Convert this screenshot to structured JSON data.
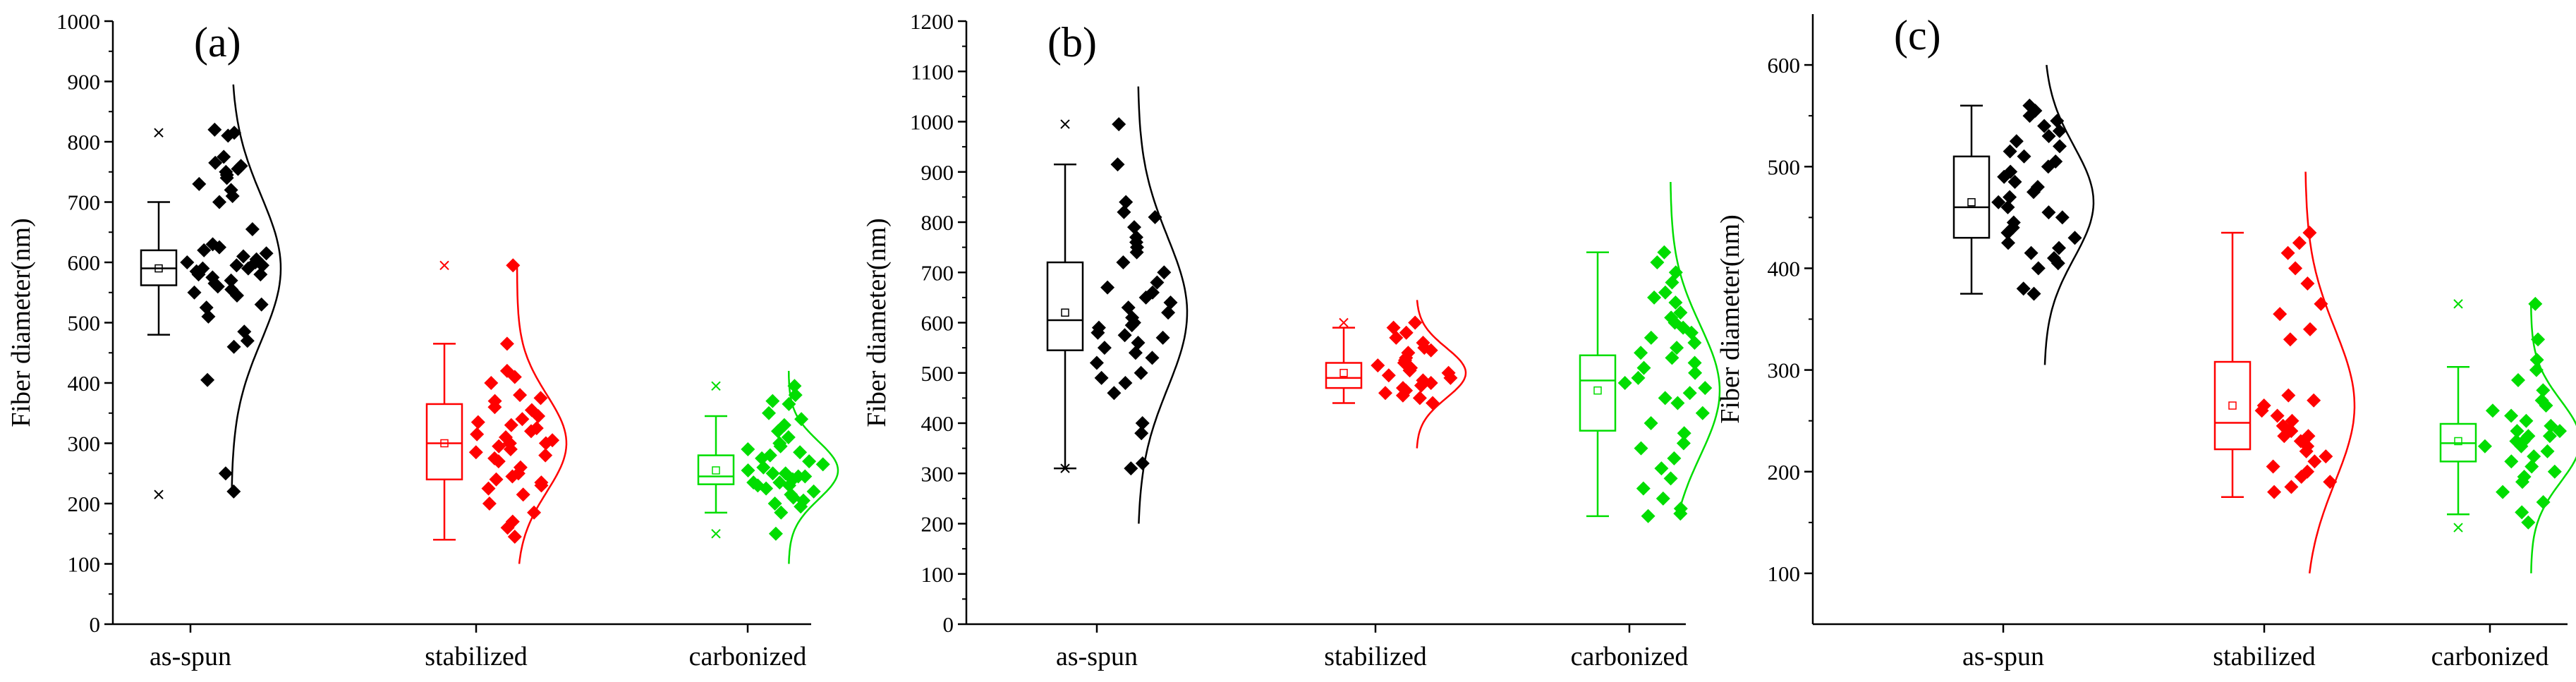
{
  "chart_data": [
    {
      "type": "box-scatter-distribution",
      "panel_label": "(a)",
      "ylabel": "Fiber diameter(nm)",
      "ylim": [
        0,
        1000
      ],
      "yticks": [
        0,
        100,
        200,
        300,
        400,
        500,
        600,
        700,
        800,
        900,
        1000
      ],
      "categories": [
        "as-spun",
        "stabilized",
        "carbonized"
      ],
      "series": [
        {
          "name": "as-spun",
          "color": "#000000",
          "box": {
            "min": 480,
            "q1": 562,
            "median": 590,
            "q3": 620,
            "max": 700,
            "mean": 590,
            "outliers": [
              815,
              215
            ]
          },
          "points": [
            820,
            815,
            810,
            775,
            765,
            760,
            755,
            750,
            745,
            740,
            730,
            720,
            710,
            700,
            655,
            630,
            625,
            620,
            615,
            610,
            605,
            600,
            600,
            595,
            595,
            590,
            590,
            585,
            580,
            580,
            575,
            570,
            565,
            560,
            555,
            550,
            545,
            530,
            525,
            510,
            485,
            470,
            460,
            405,
            250,
            220
          ],
          "curve": {
            "mean": 590,
            "sd": 120,
            "lo": 215,
            "hi": 895
          }
        },
        {
          "name": "stabilized",
          "color": "#ff0000",
          "box": {
            "min": 140,
            "q1": 240,
            "median": 300,
            "q3": 365,
            "max": 465,
            "mean": 300,
            "outliers": [
              595
            ]
          },
          "points": [
            595,
            465,
            420,
            410,
            400,
            380,
            375,
            370,
            360,
            355,
            345,
            340,
            335,
            330,
            325,
            320,
            315,
            310,
            305,
            300,
            300,
            295,
            290,
            285,
            280,
            275,
            270,
            260,
            250,
            245,
            240,
            235,
            230,
            225,
            215,
            200,
            185,
            170,
            160,
            145
          ],
          "curve": {
            "mean": 300,
            "sd": 80,
            "lo": 100,
            "hi": 595
          }
        },
        {
          "name": "carbonized",
          "color": "#00dd00",
          "box": {
            "min": 185,
            "q1": 232,
            "median": 245,
            "q3": 280,
            "max": 345,
            "mean": 255,
            "outliers": [
              395,
              150
            ]
          },
          "points": [
            395,
            380,
            370,
            365,
            350,
            340,
            330,
            320,
            310,
            300,
            295,
            290,
            285,
            280,
            275,
            270,
            265,
            260,
            255,
            250,
            250,
            245,
            245,
            240,
            240,
            235,
            235,
            230,
            230,
            225,
            220,
            215,
            210,
            205,
            200,
            195,
            185,
            150
          ],
          "curve": {
            "mean": 255,
            "sd": 48,
            "lo": 100,
            "hi": 420
          }
        }
      ]
    },
    {
      "type": "box-scatter-distribution",
      "panel_label": "(b)",
      "ylabel": "Fiber diameter(nm)",
      "ylim": [
        0,
        1200
      ],
      "yticks": [
        0,
        100,
        200,
        300,
        400,
        500,
        600,
        700,
        800,
        900,
        1000,
        1100,
        1200
      ],
      "categories": [
        "as-spun",
        "stabilized",
        "carbonized"
      ],
      "series": [
        {
          "name": "as-spun",
          "color": "#000000",
          "box": {
            "min": 310,
            "q1": 545,
            "median": 605,
            "q3": 720,
            "max": 915,
            "mean": 620,
            "outliers": [
              995,
              310
            ]
          },
          "points": [
            995,
            915,
            840,
            820,
            810,
            790,
            770,
            760,
            750,
            740,
            720,
            700,
            680,
            670,
            660,
            650,
            640,
            630,
            620,
            610,
            600,
            595,
            590,
            580,
            575,
            570,
            560,
            550,
            540,
            530,
            520,
            500,
            490,
            480,
            460,
            400,
            380,
            320,
            310
          ],
          "curve": {
            "mean": 620,
            "sd": 150,
            "lo": 200,
            "hi": 1070
          }
        },
        {
          "name": "stabilized",
          "color": "#ff0000",
          "box": {
            "min": 440,
            "q1": 470,
            "median": 490,
            "q3": 520,
            "max": 590,
            "mean": 500,
            "outliers": [
              600
            ]
          },
          "points": [
            600,
            590,
            580,
            570,
            560,
            550,
            545,
            540,
            530,
            525,
            520,
            515,
            510,
            505,
            500,
            495,
            490,
            485,
            480,
            475,
            470,
            465,
            460,
            455,
            450,
            440
          ],
          "curve": {
            "mean": 500,
            "sd": 50,
            "lo": 350,
            "hi": 645
          }
        },
        {
          "name": "carbonized",
          "color": "#00dd00",
          "box": {
            "min": 215,
            "q1": 385,
            "median": 485,
            "q3": 535,
            "max": 740,
            "mean": 465,
            "outliers": []
          },
          "points": [
            740,
            720,
            700,
            680,
            660,
            650,
            640,
            620,
            610,
            600,
            590,
            580,
            570,
            560,
            550,
            540,
            530,
            520,
            510,
            500,
            490,
            480,
            470,
            460,
            450,
            440,
            420,
            400,
            380,
            360,
            350,
            330,
            310,
            290,
            270,
            250,
            230,
            220,
            215
          ],
          "curve": {
            "mean": 465,
            "sd": 130,
            "lo": 215,
            "hi": 880
          }
        }
      ]
    },
    {
      "type": "box-scatter-distribution",
      "panel_label": "(c)",
      "ylabel": "Fiber diameter(nm)",
      "ylim": [
        50,
        650
      ],
      "yticks": [
        100,
        200,
        300,
        400,
        500,
        600
      ],
      "categories": [
        "as-spun",
        "stabilized",
        "carbonized"
      ],
      "series": [
        {
          "name": "as-spun",
          "color": "#000000",
          "box": {
            "min": 375,
            "q1": 430,
            "median": 460,
            "q3": 510,
            "max": 560,
            "mean": 465,
            "outliers": []
          },
          "points": [
            560,
            555,
            550,
            545,
            540,
            535,
            530,
            525,
            520,
            515,
            510,
            505,
            500,
            495,
            490,
            485,
            480,
            475,
            470,
            465,
            460,
            455,
            450,
            445,
            440,
            435,
            430,
            425,
            420,
            415,
            410,
            405,
            400,
            380,
            375
          ],
          "curve": {
            "mean": 465,
            "sd": 55,
            "lo": 305,
            "hi": 600
          }
        },
        {
          "name": "stabilized",
          "color": "#ff0000",
          "box": {
            "min": 175,
            "q1": 222,
            "median": 248,
            "q3": 308,
            "max": 435,
            "mean": 265,
            "outliers": []
          },
          "points": [
            435,
            425,
            415,
            400,
            385,
            365,
            355,
            340,
            330,
            275,
            270,
            265,
            260,
            255,
            250,
            245,
            240,
            240,
            235,
            235,
            230,
            225,
            220,
            215,
            210,
            205,
            200,
            195,
            190,
            185,
            180
          ],
          "curve": {
            "mean": 265,
            "sd": 75,
            "lo": 100,
            "hi": 495
          }
        },
        {
          "name": "carbonized",
          "color": "#00dd00",
          "box": {
            "min": 158,
            "q1": 210,
            "median": 228,
            "q3": 247,
            "max": 303,
            "mean": 230,
            "outliers": [
              365,
              145
            ]
          },
          "points": [
            365,
            330,
            310,
            300,
            290,
            280,
            270,
            265,
            260,
            255,
            250,
            245,
            240,
            240,
            235,
            235,
            230,
            230,
            225,
            225,
            220,
            215,
            210,
            205,
            200,
            195,
            190,
            180,
            170,
            160,
            150
          ],
          "curve": {
            "mean": 230,
            "sd": 40,
            "lo": 100,
            "hi": 365
          }
        }
      ]
    }
  ]
}
